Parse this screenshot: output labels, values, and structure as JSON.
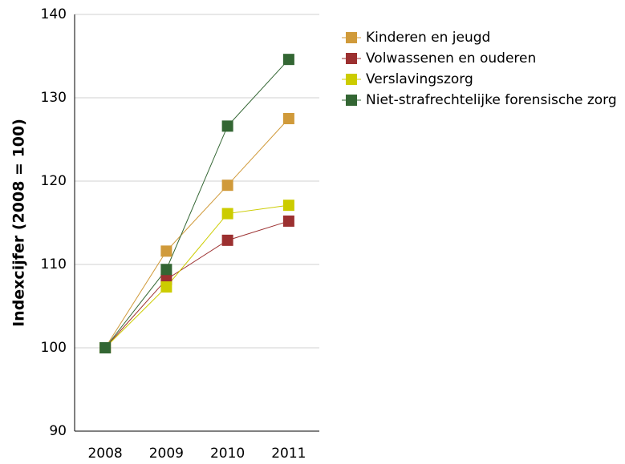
{
  "chart_data": {
    "type": "line",
    "y_label": "Indexcijfer (2008 = 100)",
    "categories": [
      "2008",
      "2009",
      "2010",
      "2011"
    ],
    "series": [
      {
        "name": "Kinderen en jeugd",
        "color": "#d09a3a",
        "values": [
          100,
          111.6,
          119.5,
          127.5
        ]
      },
      {
        "name": "Volwassenen en ouderen",
        "color": "#9c3030",
        "values": [
          100,
          108.2,
          112.9,
          115.2
        ]
      },
      {
        "name": "Verslavingszorg",
        "color": "#cccc00",
        "values": [
          100,
          107.3,
          116.1,
          117.1
        ]
      },
      {
        "name": "Niet-strafrechtelijke forensische zorg",
        "color": "#336633",
        "values": [
          100,
          109.4,
          126.6,
          134.6
        ]
      }
    ],
    "ylim": [
      90,
      140
    ],
    "yticks": [
      90,
      100,
      110,
      120,
      130,
      140
    ],
    "grid": true,
    "legend": "right"
  }
}
